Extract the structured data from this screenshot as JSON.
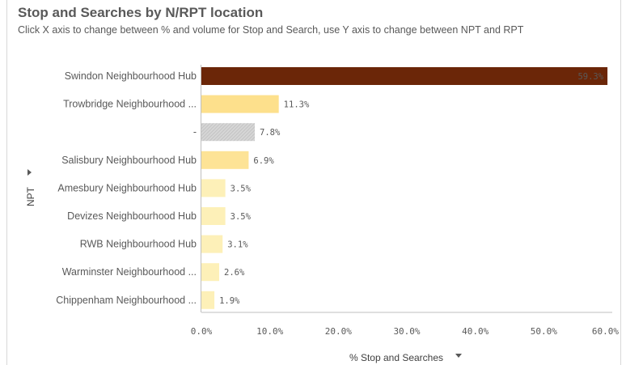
{
  "chart_data": {
    "type": "bar",
    "orientation": "horizontal",
    "title": "Stop and Searches by N/RPT location",
    "subtitle": "Click X axis to change between % and volume for Stop and Search, use Y axis to change between NPT and RPT",
    "xlabel": "% Stop and Searches",
    "ylabel": "NPT",
    "categories": [
      "Swindon Neighbourhood Hub",
      "Trowbridge Neighbourhood ...",
      "-",
      "Salisbury Neighbourhood Hub",
      "Amesbury Neighbourhood Hub",
      "Devizes Neighbourhood Hub",
      "RWB Neighbourhood Hub",
      "Warminster Neighbourhood ...",
      "Chippenham Neighbourhood ..."
    ],
    "values": [
      59.3,
      11.3,
      7.8,
      6.9,
      3.5,
      3.5,
      3.1,
      2.6,
      1.9
    ],
    "value_labels": [
      "59.3%",
      "11.3%",
      "7.8%",
      "6.9%",
      "3.5%",
      "3.5%",
      "3.1%",
      "2.6%",
      "1.9%"
    ],
    "bar_colors": [
      "#6b2608",
      "#fde08c",
      "#d3d3d3",
      "#fde396",
      "#fdf0b8",
      "#fdf0b8",
      "#fdf0b8",
      "#fdf0b8",
      "#fdf0b8"
    ],
    "xlim": [
      0,
      60
    ],
    "xticks": [
      "0.0%",
      "10.0%",
      "20.0%",
      "30.0%",
      "40.0%",
      "50.0%",
      "60.0%"
    ],
    "legend": "none",
    "grid": false
  }
}
